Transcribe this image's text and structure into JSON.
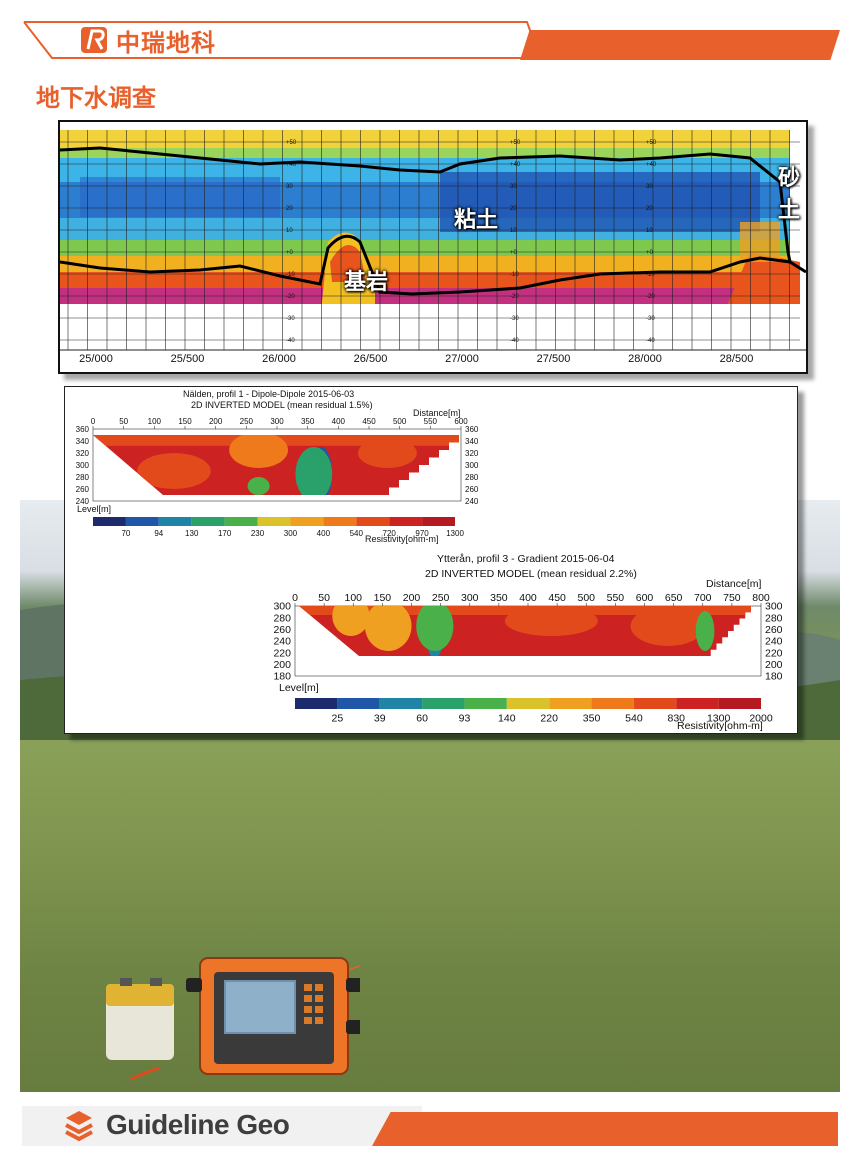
{
  "header": {
    "company": "中瑞地科",
    "section_title": "地下水调查"
  },
  "profile_top": {
    "x_ticks": [
      "25/000",
      "25/500",
      "26/000",
      "26/500",
      "27/000",
      "27/500",
      "28/000",
      "28/500"
    ],
    "elevation_ticks_a": [
      "+50",
      "+40",
      "30",
      "20",
      "10",
      "+0",
      "-10",
      "-20",
      "-30",
      "-40"
    ],
    "elevation_ticks_b": [
      "+50",
      "+40",
      "30",
      "20",
      "10",
      "+0",
      "-10",
      "-20",
      "-30",
      "-40"
    ],
    "elevation_ticks_c": [
      "+50",
      "+40",
      "30",
      "20",
      "10",
      "+0",
      "-10",
      "-20",
      "-30",
      "-40"
    ],
    "labels": {
      "sand": "砂土",
      "clay": "粘土",
      "bedrock": "基岩"
    }
  },
  "model1": {
    "title_line1": "Nälden, profil 1 - Dipole-Dipole 2015-06-03",
    "title_line2": "2D INVERTED MODEL (mean residual 1.5%)",
    "distance_label": "Distance[m]",
    "x_ticks": [
      "0",
      "50",
      "100",
      "150",
      "200",
      "250",
      "300",
      "350",
      "400",
      "450",
      "500",
      "550",
      "600"
    ],
    "y_ticks": [
      "360",
      "340",
      "320",
      "300",
      "280",
      "260",
      "240"
    ],
    "level_label": "Level[m]",
    "colorbar_values": [
      "70",
      "94",
      "130",
      "170",
      "230",
      "300",
      "400",
      "540",
      "720",
      "970",
      "1300"
    ],
    "resistivity_label": "Resistivity[ohm-m]"
  },
  "model2": {
    "title_line1": "Ytterån, profil 3 - Gradient 2015-06-04",
    "title_line2": "2D INVERTED MODEL (mean residual 2.2%)",
    "distance_label": "Distance[m]",
    "x_ticks": [
      "0",
      "50",
      "100",
      "150",
      "200",
      "250",
      "300",
      "350",
      "400",
      "450",
      "500",
      "550",
      "600",
      "650",
      "700",
      "750",
      "800"
    ],
    "y_ticks": [
      "300",
      "280",
      "260",
      "240",
      "220",
      "200",
      "180"
    ],
    "level_label": "Level[m]",
    "colorbar_values": [
      "25",
      "39",
      "60",
      "93",
      "140",
      "220",
      "350",
      "540",
      "830",
      "1300",
      "2000"
    ],
    "resistivity_label": "Resistivity[ohm-m]"
  },
  "colors": {
    "accent": "#e8612c",
    "footer_text": "#3e3e3e",
    "colorbar": [
      "#1d2a6b",
      "#1f56a8",
      "#1f84a6",
      "#2aa06a",
      "#4ab04a",
      "#d9c22a",
      "#f0a020",
      "#ee7a1c",
      "#e24a1c",
      "#cc2222",
      "#b51a22"
    ]
  },
  "footer": {
    "brand": "Guideline Geo"
  }
}
